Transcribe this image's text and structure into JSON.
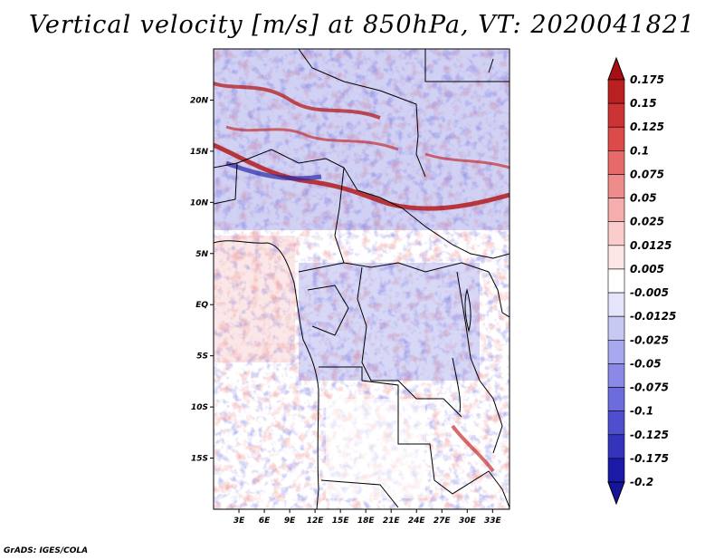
{
  "title": "Vertical velocity [m/s] at 850hPa, VT: 2020041821",
  "footer": "GrADS: IGES/COLA",
  "map": {
    "lon_range": [
      0,
      35
    ],
    "lat_range": [
      -20,
      25
    ],
    "lat_ticks": [
      {
        "value": 20,
        "label": "20N"
      },
      {
        "value": 15,
        "label": "15N"
      },
      {
        "value": 10,
        "label": "10N"
      },
      {
        "value": 5,
        "label": "5N"
      },
      {
        "value": 0,
        "label": "EQ"
      },
      {
        "value": -5,
        "label": "5S"
      },
      {
        "value": -10,
        "label": "10S"
      },
      {
        "value": -15,
        "label": "15S"
      }
    ],
    "lon_ticks": [
      {
        "value": 3,
        "label": "3E"
      },
      {
        "value": 6,
        "label": "6E"
      },
      {
        "value": 9,
        "label": "9E"
      },
      {
        "value": 12,
        "label": "12E"
      },
      {
        "value": 15,
        "label": "15E"
      },
      {
        "value": 18,
        "label": "18E"
      },
      {
        "value": 21,
        "label": "21E"
      },
      {
        "value": 24,
        "label": "24E"
      },
      {
        "value": 27,
        "label": "27E"
      },
      {
        "value": 30,
        "label": "30E"
      },
      {
        "value": 33,
        "label": "33E"
      }
    ]
  },
  "colorbar": {
    "levels": [
      {
        "label": "0.175",
        "color": "#a50f15"
      },
      {
        "label": "0.15",
        "color": "#bb2020"
      },
      {
        "label": "0.125",
        "color": "#cc3333"
      },
      {
        "label": "0.1",
        "color": "#dc4a4a"
      },
      {
        "label": "0.075",
        "color": "#e66a6a"
      },
      {
        "label": "0.05",
        "color": "#ee8c8c"
      },
      {
        "label": "0.025",
        "color": "#f5adad"
      },
      {
        "label": "0.0125",
        "color": "#facccc"
      },
      {
        "label": "0.005",
        "color": "#fde6e6"
      },
      {
        "label": "-0.005",
        "color": "#ffffff"
      },
      {
        "label": "-0.0125",
        "color": "#e4e4fb"
      },
      {
        "label": "-0.025",
        "color": "#c8c8f5"
      },
      {
        "label": "-0.05",
        "color": "#a8a8ef"
      },
      {
        "label": "-0.075",
        "color": "#8a8ae6"
      },
      {
        "label": "-0.1",
        "color": "#6c6cdc"
      },
      {
        "label": "-0.125",
        "color": "#4e4ece"
      },
      {
        "label": "-0.175",
        "color": "#3333bb"
      },
      {
        "label": "-0.2",
        "color": "#1a1aa6"
      }
    ],
    "top_arrow_color": "#a50f15",
    "bottom_arrow_color": "#15159a"
  }
}
